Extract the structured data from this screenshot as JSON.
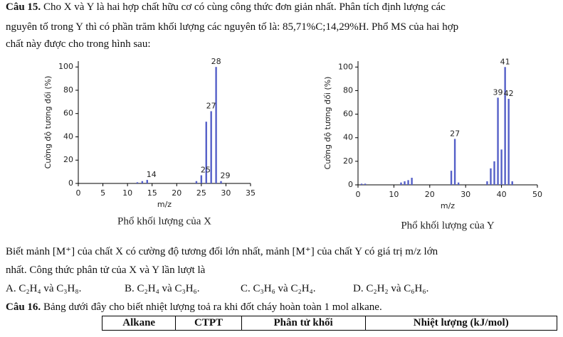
{
  "question15": {
    "label": "Câu 15.",
    "line1": "Cho X và Y là hai hợp chất hữu cơ có cùng công thức đơn giản nhất. Phân tích định lượng các",
    "line2": "nguyên tố trong Y thì có phần trăm khối lượng các nguyên tố là: 85,71%C;14,29%H. Phổ MS của hai hợp",
    "line3": "chất này được cho trong hình sau:",
    "line4": "Biết mảnh [M⁺] của chất X có cường độ tương đối lớn nhất, mảnh [M⁺] của chất Y có giá trị m/z lớn",
    "line5": "nhất. Công thức phân tử của X và Y lần lượt là",
    "options": [
      {
        "label": "A.",
        "text": "C₂H₄ và C₃H₈."
      },
      {
        "label": "B.",
        "text": "C₂H₄ và C₃H₆."
      },
      {
        "label": "C.",
        "text": "C₃H₆ và C₂H₄."
      },
      {
        "label": "D.",
        "text": "C₂H₂ và C₆H₆."
      }
    ]
  },
  "chart_data": [
    {
      "type": "bar",
      "caption": "Phổ khối lượng của X",
      "x_label": "m/z",
      "y_label": "Cường độ tương đối (%)",
      "x": [
        12,
        13,
        14,
        24,
        25,
        26,
        27,
        28,
        29
      ],
      "values": [
        1,
        2,
        3,
        2,
        7,
        53,
        62,
        100,
        2
      ],
      "peak_labels": [
        14,
        25,
        27,
        28,
        29
      ],
      "color": "#5560c8",
      "xlim": [
        0,
        35
      ],
      "xticks": [
        0,
        5,
        10,
        15,
        20,
        25,
        30,
        35
      ],
      "ylim": [
        0,
        105
      ],
      "yticks": [
        0,
        20,
        40,
        60,
        80,
        100
      ]
    },
    {
      "type": "bar",
      "caption": "Phổ khối lượng của Y",
      "x_label": "m/z",
      "y_label": "Cường độ tương đối (%)",
      "x": [
        1,
        2,
        12,
        13,
        14,
        15,
        26,
        27,
        28,
        36,
        37,
        38,
        39,
        40,
        41,
        42,
        43
      ],
      "values": [
        1,
        1,
        2,
        3,
        4,
        6,
        12,
        39,
        2,
        3,
        14,
        20,
        74,
        30,
        100,
        73,
        3
      ],
      "peak_labels": [
        27,
        39,
        41,
        42
      ],
      "color": "#5560c8",
      "xlim": [
        0,
        50
      ],
      "xticks": [
        0,
        10,
        20,
        30,
        40,
        50
      ],
      "ylim": [
        0,
        105
      ],
      "yticks": [
        0,
        20,
        40,
        60,
        80,
        100
      ]
    }
  ],
  "question16": {
    "label": "Câu 16.",
    "text": "Bảng dưới đây cho biết nhiệt lượng toả ra khi đốt cháy hoàn toàn 1 mol alkane."
  },
  "table": {
    "header": [
      "Alkane",
      "CTPT",
      "Phân tử khối",
      "Nhiệt lượng (kJ/mol)"
    ]
  }
}
